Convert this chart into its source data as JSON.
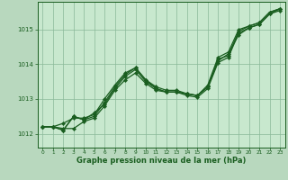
{
  "title": "Graphe pression niveau de la mer (hPa)",
  "background_color": "#b8d8be",
  "plot_bg_color": "#c8e8ce",
  "grid_color": "#8ab898",
  "line_color": "#1a5e20",
  "marker_color": "#1a5e20",
  "xlabel": "Graphe pression niveau de la mer (hPa)",
  "xlim": [
    -0.5,
    23.5
  ],
  "ylim": [
    1011.6,
    1015.8
  ],
  "yticks": [
    1012,
    1013,
    1014,
    1015
  ],
  "xticks": [
    0,
    1,
    2,
    3,
    4,
    5,
    6,
    7,
    8,
    9,
    10,
    11,
    12,
    13,
    14,
    15,
    16,
    17,
    18,
    19,
    20,
    21,
    22,
    23
  ],
  "series": [
    [
      1012.2,
      1012.2,
      1012.15,
      1012.15,
      1012.35,
      1012.45,
      1012.8,
      1013.25,
      1013.55,
      1013.75,
      1013.45,
      1013.25,
      1013.2,
      1013.2,
      1013.15,
      1013.1,
      1013.35,
      1014.1,
      1014.3,
      1014.85,
      1015.05,
      1015.15,
      1015.45,
      1015.6
    ],
    [
      1012.2,
      1012.2,
      1012.1,
      1012.5,
      1012.4,
      1012.5,
      1012.9,
      1013.35,
      1013.7,
      1013.9,
      1013.55,
      1013.3,
      1013.2,
      1013.2,
      1013.15,
      1013.1,
      1013.35,
      1014.15,
      1014.25,
      1014.95,
      1015.1,
      1015.2,
      1015.5,
      1015.6
    ],
    [
      1012.2,
      1012.2,
      1012.3,
      1012.45,
      1012.45,
      1012.55,
      1013.0,
      1013.4,
      1013.75,
      1013.9,
      1013.55,
      1013.35,
      1013.25,
      1013.25,
      1013.15,
      1013.1,
      1013.4,
      1014.2,
      1014.35,
      1015.0,
      1015.1,
      1015.2,
      1015.5,
      1015.6
    ],
    [
      1012.2,
      1012.2,
      1012.1,
      1012.5,
      1012.4,
      1012.6,
      1012.85,
      1013.3,
      1013.65,
      1013.85,
      1013.5,
      1013.3,
      1013.2,
      1013.2,
      1013.1,
      1013.05,
      1013.3,
      1014.05,
      1014.2,
      1014.9,
      1015.05,
      1015.15,
      1015.45,
      1015.55
    ]
  ]
}
